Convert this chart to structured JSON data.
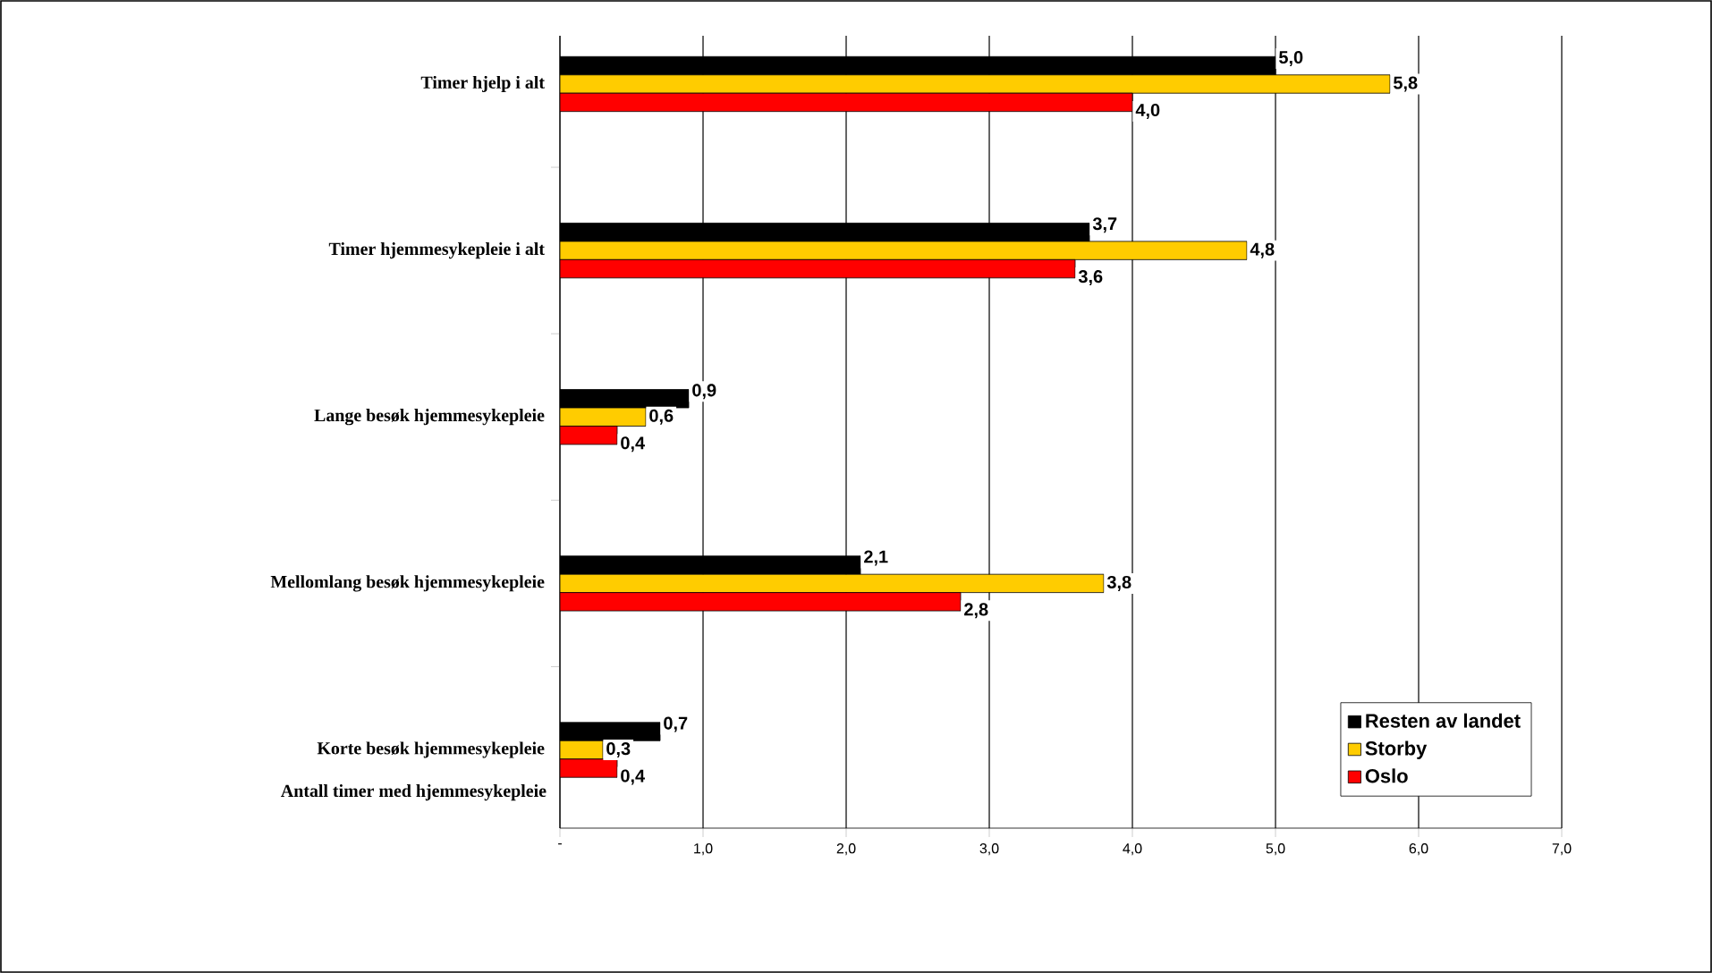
{
  "chart_data": {
    "type": "bar",
    "orientation": "horizontal",
    "ylabel": "Antall timer med hjemmesykepleie",
    "categories": [
      "Timer hjelp i alt",
      "Timer hjemmesykepleie i alt",
      "Lange besøk hjemmesykepleie",
      "Mellomlang besøk hjemmesykepleie",
      "Korte besøk hjemmesykepleie"
    ],
    "series": [
      {
        "name": "Resten av landet",
        "color": "#000000",
        "values": [
          5.0,
          3.7,
          0.9,
          2.1,
          0.7
        ],
        "value_labels": [
          "5,0",
          "3,7",
          "0,9",
          "2,1",
          "0,7"
        ]
      },
      {
        "name": "Storby",
        "color": "#ffcc00",
        "values": [
          5.8,
          4.8,
          0.6,
          3.8,
          0.3
        ],
        "value_labels": [
          "5,8",
          "4,8",
          "0,6",
          "3,8",
          "0,3"
        ]
      },
      {
        "name": "Oslo",
        "color": "#ff0000",
        "values": [
          4.0,
          3.6,
          0.4,
          2.8,
          0.4
        ],
        "value_labels": [
          "4,0",
          "3,6",
          "0,4",
          "2,8",
          "0,4"
        ]
      }
    ],
    "xlim": [
      0,
      7
    ],
    "xticks": [
      {
        "value": 0,
        "label": "-"
      },
      {
        "value": 1,
        "label": "1,0"
      },
      {
        "value": 2,
        "label": "2,0"
      },
      {
        "value": 3,
        "label": "3,0"
      },
      {
        "value": 4,
        "label": "4,0"
      },
      {
        "value": 5,
        "label": "5,0"
      },
      {
        "value": 6,
        "label": "6,0"
      },
      {
        "value": 7,
        "label": "7,0"
      }
    ],
    "grid": "x",
    "legend": "bottom right"
  }
}
